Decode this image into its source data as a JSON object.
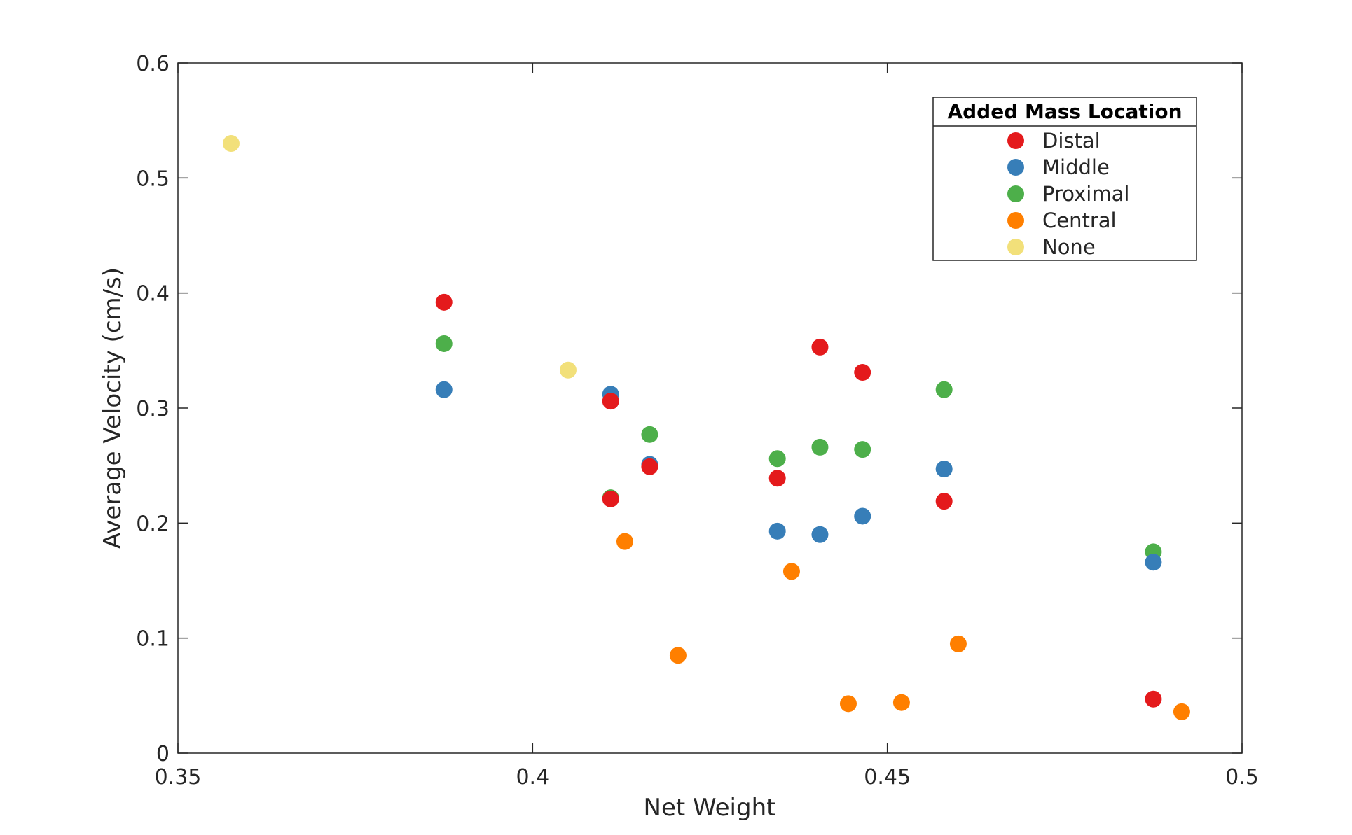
{
  "chart_data": {
    "type": "scatter",
    "title": "",
    "xlabel": "Net Weight",
    "ylabel": "Average Velocity (cm/s)",
    "xlim": [
      0.35,
      0.5
    ],
    "ylim": [
      0,
      0.6
    ],
    "xticks": [
      0.35,
      0.4,
      0.45,
      0.5
    ],
    "xtick_labels": [
      "0.35",
      "0.4",
      "0.45",
      "0.5"
    ],
    "yticks": [
      0,
      0.1,
      0.2,
      0.3,
      0.4,
      0.5,
      0.6
    ],
    "ytick_labels": [
      "0",
      "0.1",
      "0.2",
      "0.3",
      "0.4",
      "0.5",
      "0.6"
    ],
    "grid": false,
    "legend": {
      "title": "Added Mass Location",
      "placement": "top-right"
    },
    "series": [
      {
        "name": "Distal",
        "color": "#e41a1c",
        "points": [
          {
            "x": 0.3875,
            "y": 0.392
          },
          {
            "x": 0.411,
            "y": 0.306
          },
          {
            "x": 0.4165,
            "y": 0.249
          },
          {
            "x": 0.411,
            "y": 0.221
          },
          {
            "x": 0.4345,
            "y": 0.239
          },
          {
            "x": 0.4405,
            "y": 0.353
          },
          {
            "x": 0.4465,
            "y": 0.331
          },
          {
            "x": 0.458,
            "y": 0.219
          },
          {
            "x": 0.4875,
            "y": 0.047
          }
        ]
      },
      {
        "name": "Middle",
        "color": "#377eb8",
        "points": [
          {
            "x": 0.3875,
            "y": 0.316
          },
          {
            "x": 0.411,
            "y": 0.312
          },
          {
            "x": 0.4165,
            "y": 0.251
          },
          {
            "x": 0.4345,
            "y": 0.193
          },
          {
            "x": 0.4405,
            "y": 0.19
          },
          {
            "x": 0.4465,
            "y": 0.206
          },
          {
            "x": 0.458,
            "y": 0.247
          },
          {
            "x": 0.4875,
            "y": 0.166
          }
        ]
      },
      {
        "name": "Proximal",
        "color": "#4daf4a",
        "points": [
          {
            "x": 0.3875,
            "y": 0.356
          },
          {
            "x": 0.411,
            "y": 0.222
          },
          {
            "x": 0.4165,
            "y": 0.277
          },
          {
            "x": 0.4345,
            "y": 0.256
          },
          {
            "x": 0.4405,
            "y": 0.266
          },
          {
            "x": 0.4465,
            "y": 0.264
          },
          {
            "x": 0.458,
            "y": 0.316
          },
          {
            "x": 0.4875,
            "y": 0.175
          }
        ]
      },
      {
        "name": "Central",
        "color": "#ff7f00",
        "points": [
          {
            "x": 0.413,
            "y": 0.184
          },
          {
            "x": 0.4205,
            "y": 0.085
          },
          {
            "x": 0.4365,
            "y": 0.158
          },
          {
            "x": 0.4445,
            "y": 0.043
          },
          {
            "x": 0.452,
            "y": 0.044
          },
          {
            "x": 0.46,
            "y": 0.095
          },
          {
            "x": 0.4915,
            "y": 0.036
          }
        ]
      },
      {
        "name": "None",
        "color": "#f2e07a",
        "points": [
          {
            "x": 0.3575,
            "y": 0.53
          },
          {
            "x": 0.405,
            "y": 0.333
          }
        ]
      }
    ]
  }
}
